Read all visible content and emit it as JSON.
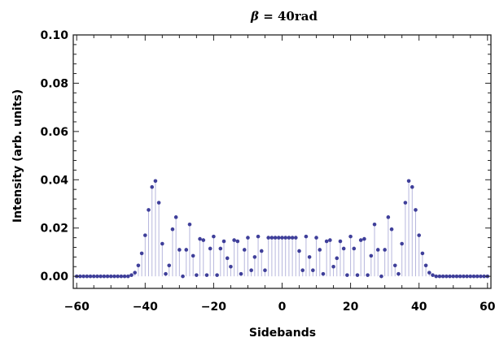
{
  "chart_data": {
    "type": "scatter",
    "title_symbol": "β",
    "title_value": " = 40rad",
    "xlabel": "Sidebands",
    "ylabel": "Intensity (arb. units)",
    "xlim": [
      -61,
      61
    ],
    "ylim": [
      -0.005,
      0.1
    ],
    "x_ticks": [
      -60,
      -40,
      -20,
      0,
      20,
      40,
      60
    ],
    "y_ticks": [
      0.0,
      0.02,
      0.04,
      0.06,
      0.08,
      0.1
    ],
    "x_tick_labels": [
      "−60",
      "−40",
      "−20",
      "0",
      "20",
      "40",
      "60"
    ],
    "y_tick_labels": [
      "0.00",
      "0.02",
      "0.04",
      "0.06",
      "0.08",
      "0.10"
    ],
    "stems": true,
    "colors": {
      "point": "#3f3f9a",
      "stem": "#b7b7dd"
    },
    "series": [
      {
        "x": [
          -60,
          -59,
          -58,
          -57,
          -56,
          -55,
          -54,
          -53,
          -52,
          -51,
          -50,
          -49,
          -48,
          -47,
          -46,
          -45,
          -44,
          -43,
          -42,
          -41,
          -40,
          -39,
          -38,
          -37,
          -36,
          -35,
          -34,
          -33,
          -32,
          -31,
          -30,
          -29,
          -28,
          -27,
          -26,
          -25,
          -24,
          -23,
          -22,
          -21,
          -20,
          -19,
          -18,
          -17,
          -16,
          -15,
          -14,
          -13,
          -12,
          -11,
          -10,
          -9,
          -8,
          -7,
          -6,
          -5,
          -4,
          -3,
          -2,
          -1,
          0,
          1,
          2,
          3,
          4,
          5,
          6,
          7,
          8,
          9,
          10,
          11,
          12,
          13,
          14,
          15,
          16,
          17,
          18,
          19,
          20,
          21,
          22,
          23,
          24,
          25,
          26,
          27,
          28,
          29,
          30,
          31,
          32,
          33,
          34,
          35,
          36,
          37,
          38,
          39,
          40,
          41,
          42,
          43,
          44,
          45,
          46,
          47,
          48,
          49,
          50,
          51,
          52,
          53,
          54,
          55,
          56,
          57,
          58,
          59,
          60
        ],
        "y": [
          0,
          0,
          0,
          0,
          0,
          0,
          0,
          0,
          0,
          0,
          0,
          0,
          0,
          0,
          0,
          0,
          0.0005,
          0.0015,
          0.0045,
          0.0095,
          0.017,
          0.0275,
          0.037,
          0.0395,
          0.0305,
          0.0135,
          0.001,
          0.0045,
          0.0195,
          0.0245,
          0.011,
          0,
          0.011,
          0.0215,
          0.0085,
          0.0005,
          0.0155,
          0.015,
          0.0005,
          0.0115,
          0.0165,
          0.0005,
          0.0115,
          0.0145,
          0.0075,
          0.004,
          0.015,
          0.0145,
          0.001,
          0.011,
          0.016,
          0.0025,
          0.008,
          0.0165,
          0.0105,
          0.0025,
          0.016,
          0.016,
          0.016,
          0.016,
          0.016,
          0.016,
          0.016,
          0.016,
          0.016,
          0.0105,
          0.0025,
          0.0165,
          0.008,
          0.0025,
          0.016,
          0.011,
          0.001,
          0.0145,
          0.015,
          0.004,
          0.0075,
          0.0145,
          0.0115,
          0.0005,
          0.0165,
          0.0115,
          0.0005,
          0.015,
          0.0155,
          0.0005,
          0.0085,
          0.0215,
          0.011,
          0,
          0.011,
          0.0245,
          0.0195,
          0.0045,
          0.001,
          0.0135,
          0.0305,
          0.0395,
          0.037,
          0.0275,
          0.017,
          0.0095,
          0.0045,
          0.0015,
          0.0005,
          0,
          0,
          0,
          0,
          0,
          0,
          0,
          0,
          0,
          0,
          0,
          0,
          0,
          0,
          0,
          0
        ]
      }
    ]
  }
}
